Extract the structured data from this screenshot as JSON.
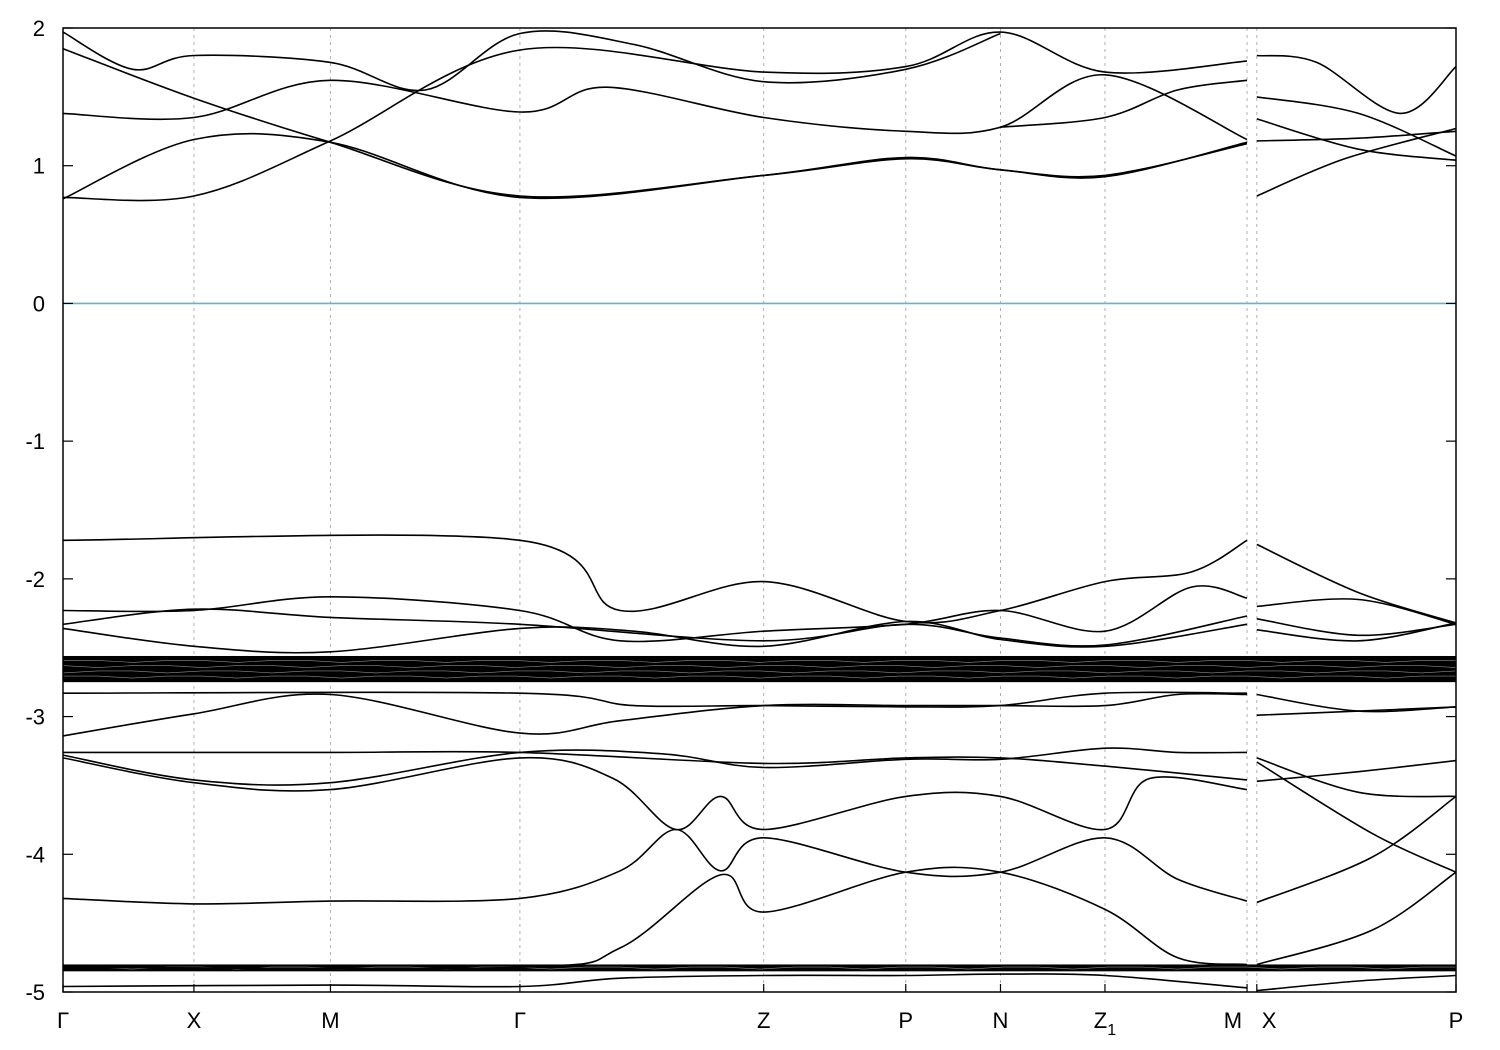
{
  "chart_data": {
    "type": "line",
    "title": "",
    "xlabel": "",
    "ylabel": "",
    "ylim": [
      -5,
      2
    ],
    "yticks": [
      "2",
      "1",
      "0",
      "-1",
      "-2",
      "-3",
      "-4",
      "-5"
    ],
    "ytick_values": [
      2,
      1,
      0,
      -1,
      -2,
      -3,
      -4,
      -5
    ],
    "kpath": [
      {
        "label": "Γ",
        "sub": "",
        "x": 0
      },
      {
        "label": "X",
        "sub": "",
        "x": 0.094
      },
      {
        "label": "M",
        "sub": "",
        "x": 0.192
      },
      {
        "label": "Γ",
        "sub": "",
        "x": 0.328
      },
      {
        "label": "Z",
        "sub": "",
        "x": 0.503
      },
      {
        "label": "P",
        "sub": "",
        "x": 0.605
      },
      {
        "label": "N",
        "sub": "",
        "x": 0.673
      },
      {
        "label": "Z",
        "sub": "1",
        "x": 0.748
      },
      {
        "label": "M",
        "sub": "",
        "x": 0.85
      },
      {
        "label": "X",
        "sub": "",
        "x": 0.857
      },
      {
        "label": "P",
        "sub": "",
        "x": 1.0
      }
    ],
    "grid": "vertical dashed lines at high-symmetry points",
    "fermi_level": {
      "y": 0,
      "color": "#5fb4cf"
    },
    "line_color": "#000000",
    "series": [
      {
        "points": [
          [
            0,
            0.77
          ],
          [
            0.094,
            0.78
          ],
          [
            0.192,
            1.18
          ],
          [
            0.328,
            1.84
          ],
          [
            0.503,
            1.68
          ],
          [
            0.605,
            1.72
          ],
          [
            0.673,
            1.97
          ],
          [
            0.748,
            1.68
          ],
          [
            0.85,
            1.76
          ]
        ]
      },
      {
        "points": [
          [
            0.857,
            0.78
          ],
          [
            0.92,
            1.05
          ],
          [
            1.0,
            1.27
          ]
        ]
      },
      {
        "points": [
          [
            0,
            0.76
          ],
          [
            0.094,
            1.19
          ],
          [
            0.192,
            1.17
          ],
          [
            0.328,
            0.77
          ],
          [
            0.503,
            0.93
          ],
          [
            0.605,
            1.06
          ],
          [
            0.673,
            0.97
          ],
          [
            0.748,
            0.93
          ],
          [
            0.85,
            1.16
          ]
        ]
      },
      {
        "points": [
          [
            0.857,
            1.18
          ],
          [
            0.93,
            1.2
          ],
          [
            1.0,
            1.25
          ]
        ]
      },
      {
        "points": [
          [
            0,
            1.38
          ],
          [
            0.094,
            1.35
          ],
          [
            0.192,
            1.62
          ],
          [
            0.328,
            1.39
          ],
          [
            0.39,
            1.57
          ],
          [
            0.503,
            1.35
          ],
          [
            0.605,
            1.25
          ],
          [
            0.673,
            1.28
          ],
          [
            0.748,
            1.66
          ],
          [
            0.85,
            1.19
          ]
        ]
      },
      {
        "points": [
          [
            0.857,
            1.34
          ],
          [
            0.93,
            1.12
          ],
          [
            1.0,
            1.04
          ]
        ]
      },
      {
        "points": [
          [
            0,
            1.85
          ],
          [
            0.094,
            1.49
          ],
          [
            0.192,
            1.17
          ],
          [
            0.328,
            0.78
          ],
          [
            0.503,
            0.93
          ],
          [
            0.605,
            1.05
          ],
          [
            0.673,
            0.97
          ],
          [
            0.748,
            0.92
          ],
          [
            0.85,
            1.17
          ]
        ]
      },
      {
        "points": [
          [
            0.857,
            1.5
          ],
          [
            0.93,
            1.38
          ],
          [
            1.0,
            1.07
          ]
        ]
      },
      {
        "points": [
          [
            0,
            1.97
          ],
          [
            0.05,
            1.7
          ],
          [
            0.094,
            1.8
          ],
          [
            0.192,
            1.75
          ],
          [
            0.26,
            1.55
          ],
          [
            0.328,
            1.96
          ],
          [
            0.41,
            1.88
          ],
          [
            0.503,
            1.61
          ],
          [
            0.605,
            1.7
          ],
          [
            0.673,
            1.96
          ]
        ]
      },
      {
        "points": [
          [
            0.673,
            1.28
          ],
          [
            0.748,
            1.35
          ],
          [
            0.8,
            1.55
          ],
          [
            0.85,
            1.62
          ]
        ]
      },
      {
        "points": [
          [
            0.857,
            1.8
          ],
          [
            0.9,
            1.75
          ],
          [
            0.96,
            1.38
          ],
          [
            1.0,
            1.72
          ]
        ]
      },
      {
        "points": [
          [
            0,
            -1.72
          ],
          [
            0.328,
            -1.72
          ],
          [
            0.4,
            -2.23
          ],
          [
            0.503,
            -2.02
          ],
          [
            0.605,
            -2.31
          ],
          [
            0.673,
            -2.23
          ],
          [
            0.748,
            -2.02
          ],
          [
            0.81,
            -1.95
          ],
          [
            0.85,
            -1.72
          ]
        ]
      },
      {
        "points": [
          [
            0.857,
            -1.75
          ],
          [
            0.93,
            -2.1
          ],
          [
            1.0,
            -2.32
          ]
        ]
      },
      {
        "points": [
          [
            0,
            -2.23
          ],
          [
            0.094,
            -2.23
          ],
          [
            0.192,
            -2.13
          ],
          [
            0.328,
            -2.23
          ],
          [
            0.4,
            -2.45
          ],
          [
            0.503,
            -2.38
          ],
          [
            0.605,
            -2.33
          ],
          [
            0.673,
            -2.23
          ],
          [
            0.748,
            -2.38
          ],
          [
            0.81,
            -2.06
          ],
          [
            0.85,
            -2.14
          ]
        ]
      },
      {
        "points": [
          [
            0.857,
            -2.2
          ],
          [
            0.93,
            -2.15
          ],
          [
            1.0,
            -2.33
          ]
        ]
      },
      {
        "points": [
          [
            0,
            -2.33
          ],
          [
            0.094,
            -2.22
          ],
          [
            0.192,
            -2.28
          ],
          [
            0.328,
            -2.33
          ],
          [
            0.503,
            -2.45
          ],
          [
            0.605,
            -2.33
          ],
          [
            0.673,
            -2.43
          ],
          [
            0.748,
            -2.48
          ],
          [
            0.85,
            -2.27
          ]
        ]
      },
      {
        "points": [
          [
            0.857,
            -2.37
          ],
          [
            0.93,
            -2.45
          ],
          [
            1.0,
            -2.32
          ]
        ]
      },
      {
        "points": [
          [
            0,
            -2.36
          ],
          [
            0.094,
            -2.49
          ],
          [
            0.192,
            -2.53
          ],
          [
            0.328,
            -2.36
          ],
          [
            0.41,
            -2.38
          ],
          [
            0.503,
            -2.49
          ],
          [
            0.605,
            -2.31
          ],
          [
            0.673,
            -2.44
          ],
          [
            0.748,
            -2.49
          ],
          [
            0.85,
            -2.33
          ]
        ]
      },
      {
        "points": [
          [
            0.857,
            -2.29
          ],
          [
            0.93,
            -2.41
          ],
          [
            1.0,
            -2.33
          ]
        ]
      },
      {
        "points": [
          [
            0,
            -2.83
          ],
          [
            0.328,
            -2.83
          ],
          [
            0.41,
            -2.92
          ],
          [
            0.503,
            -2.92
          ],
          [
            0.605,
            -2.93
          ],
          [
            0.673,
            -2.92
          ],
          [
            0.748,
            -2.83
          ],
          [
            0.85,
            -2.83
          ]
        ]
      },
      {
        "points": [
          [
            0.857,
            -2.84
          ],
          [
            0.93,
            -2.96
          ],
          [
            1.0,
            -2.93
          ]
        ]
      },
      {
        "points": [
          [
            0,
            -3.14
          ],
          [
            0.094,
            -2.98
          ],
          [
            0.192,
            -2.84
          ],
          [
            0.328,
            -3.12
          ],
          [
            0.4,
            -3.03
          ],
          [
            0.503,
            -2.92
          ],
          [
            0.605,
            -2.92
          ],
          [
            0.673,
            -2.92
          ],
          [
            0.748,
            -2.92
          ],
          [
            0.8,
            -2.84
          ],
          [
            0.85,
            -2.84
          ]
        ]
      },
      {
        "points": [
          [
            0.857,
            -2.99
          ],
          [
            0.93,
            -2.96
          ],
          [
            1.0,
            -2.93
          ]
        ]
      },
      {
        "points": [
          [
            0,
            -3.26
          ],
          [
            0.192,
            -3.26
          ],
          [
            0.328,
            -3.26
          ],
          [
            0.503,
            -3.34
          ],
          [
            0.605,
            -3.3
          ],
          [
            0.673,
            -3.3
          ],
          [
            0.748,
            -3.36
          ],
          [
            0.85,
            -3.46
          ]
        ]
      },
      {
        "points": [
          [
            0.857,
            -3.47
          ],
          [
            0.93,
            -3.4
          ],
          [
            1.0,
            -3.32
          ]
        ]
      },
      {
        "points": [
          [
            0,
            -3.28
          ],
          [
            0.094,
            -3.46
          ],
          [
            0.192,
            -3.48
          ],
          [
            0.328,
            -3.26
          ],
          [
            0.43,
            -3.27
          ],
          [
            0.503,
            -3.37
          ],
          [
            0.605,
            -3.31
          ],
          [
            0.673,
            -3.31
          ],
          [
            0.748,
            -3.23
          ],
          [
            0.8,
            -3.26
          ],
          [
            0.85,
            -3.26
          ]
        ]
      },
      {
        "points": [
          [
            0.857,
            -3.3
          ],
          [
            0.93,
            -3.55
          ],
          [
            1.0,
            -3.58
          ]
        ]
      },
      {
        "points": [
          [
            0,
            -3.3
          ],
          [
            0.094,
            -3.48
          ],
          [
            0.192,
            -3.53
          ],
          [
            0.328,
            -3.3
          ],
          [
            0.395,
            -3.45
          ],
          [
            0.44,
            -3.82
          ],
          [
            0.472,
            -3.58
          ],
          [
            0.503,
            -3.82
          ],
          [
            0.605,
            -3.58
          ],
          [
            0.673,
            -3.58
          ],
          [
            0.748,
            -3.82
          ],
          [
            0.78,
            -3.45
          ],
          [
            0.85,
            -3.53
          ]
        ]
      },
      {
        "points": [
          [
            0.857,
            -3.33
          ],
          [
            0.94,
            -3.85
          ],
          [
            1.0,
            -4.13
          ]
        ]
      },
      {
        "points": [
          [
            0,
            -4.32
          ],
          [
            0.094,
            -4.36
          ],
          [
            0.192,
            -4.34
          ],
          [
            0.328,
            -4.32
          ],
          [
            0.4,
            -4.12
          ],
          [
            0.44,
            -3.82
          ],
          [
            0.472,
            -4.12
          ],
          [
            0.503,
            -3.88
          ],
          [
            0.605,
            -4.13
          ],
          [
            0.673,
            -4.13
          ],
          [
            0.748,
            -3.88
          ],
          [
            0.8,
            -4.18
          ],
          [
            0.85,
            -4.34
          ]
        ]
      },
      {
        "points": [
          [
            0.857,
            -4.35
          ],
          [
            0.94,
            -4.02
          ],
          [
            1.0,
            -3.58
          ]
        ]
      },
      {
        "points": [
          [
            0,
            -4.82
          ],
          [
            0.328,
            -4.82
          ],
          [
            0.4,
            -4.68
          ],
          [
            0.472,
            -4.15
          ],
          [
            0.503,
            -4.42
          ],
          [
            0.605,
            -4.13
          ],
          [
            0.673,
            -4.13
          ],
          [
            0.748,
            -4.4
          ],
          [
            0.8,
            -4.75
          ],
          [
            0.85,
            -4.8
          ]
        ]
      },
      {
        "points": [
          [
            0.857,
            -4.8
          ],
          [
            0.94,
            -4.55
          ],
          [
            1.0,
            -4.13
          ]
        ]
      },
      {
        "points": [
          [
            0,
            -4.96
          ],
          [
            0.192,
            -4.95
          ],
          [
            0.328,
            -4.96
          ],
          [
            0.4,
            -4.9
          ],
          [
            0.503,
            -4.88
          ],
          [
            0.605,
            -4.88
          ],
          [
            0.673,
            -4.87
          ],
          [
            0.748,
            -4.88
          ],
          [
            0.85,
            -4.97
          ]
        ]
      },
      {
        "points": [
          [
            0.857,
            -4.99
          ],
          [
            0.93,
            -4.92
          ],
          [
            1.0,
            -4.88
          ]
        ]
      }
    ],
    "dense_bands": [
      {
        "y_min": -2.75,
        "y_max": -2.56
      },
      {
        "y_min": -4.85,
        "y_max": -4.8
      }
    ]
  }
}
